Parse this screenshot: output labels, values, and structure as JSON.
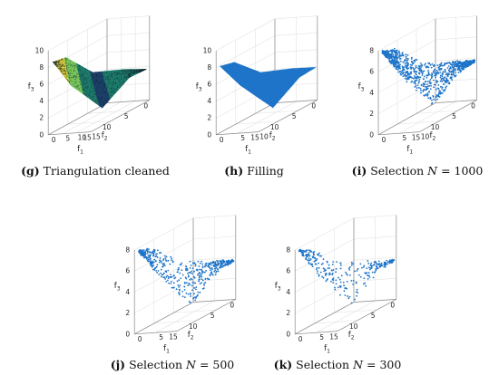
{
  "chart_data": [
    {
      "id": "g",
      "type": "scatter3d",
      "render": "surface",
      "caption_tag": "g",
      "caption": "Triangulation cleaned",
      "caption_var": "",
      "caption_value": "",
      "xlabel": "f",
      "xlabel_sub": "1",
      "ylabel": "f",
      "ylabel_sub": "2",
      "zlabel": "f",
      "zlabel_sub": "3",
      "xticks": [
        "0",
        "5",
        "10",
        "15"
      ],
      "yticks": [
        "0",
        "5",
        "10",
        "15"
      ],
      "zticks": [
        "0",
        "2",
        "4",
        "6",
        "8",
        "10"
      ],
      "xlim": [
        0,
        15
      ],
      "ylim": [
        0,
        15
      ],
      "zlim": [
        0,
        10
      ],
      "colormap": [
        "#3b0f4e",
        "#1b3f66",
        "#1d7a6a",
        "#77c45a",
        "#e7d63a"
      ],
      "front_boundary": [
        [
          1,
          14.5,
          8.5
        ],
        [
          4,
          12,
          5
        ],
        [
          8,
          7,
          1
        ],
        [
          12,
          3,
          3.5
        ],
        [
          14.5,
          0.5,
          3.8
        ]
      ],
      "back_boundary": [
        [
          1,
          14.5,
          8.5
        ],
        [
          2,
          12,
          8.4
        ],
        [
          6,
          8,
          5.5
        ],
        [
          10,
          3,
          4.5
        ],
        [
          14.5,
          0.5,
          3.8
        ]
      ]
    },
    {
      "id": "h",
      "type": "scatter3d",
      "render": "filled",
      "caption_tag": "h",
      "caption": "Filling",
      "caption_var": "",
      "caption_value": "",
      "xlabel": "f",
      "xlabel_sub": "1",
      "ylabel": "f",
      "ylabel_sub": "2",
      "zlabel": "f",
      "zlabel_sub": "3",
      "xticks": [
        "0",
        "5",
        "10"
      ],
      "yticks": [
        "0",
        "5",
        "10",
        "15"
      ],
      "zticks": [
        "0",
        "2",
        "4",
        "6",
        "8",
        "10"
      ],
      "xlim": [
        0,
        10
      ],
      "ylim": [
        0,
        15
      ],
      "zlim": [
        0,
        10
      ],
      "color": "#1e74c8",
      "front_boundary": [
        [
          0.5,
          14.5,
          8
        ],
        [
          3,
          12,
          5
        ],
        [
          6,
          7,
          1
        ],
        [
          8.5,
          3,
          3.5
        ],
        [
          10,
          0.5,
          4
        ]
      ],
      "back_boundary": [
        [
          0.5,
          14.5,
          8
        ],
        [
          1.5,
          12,
          7.8
        ],
        [
          4,
          8,
          5.5
        ],
        [
          7,
          3,
          4.6
        ],
        [
          10,
          0.5,
          4
        ]
      ]
    },
    {
      "id": "i",
      "type": "scatter3d",
      "render": "points",
      "caption_tag": "i",
      "caption": "Selection",
      "caption_var": "N",
      "caption_value": "1000",
      "n_points": 1000,
      "xlabel": "f",
      "xlabel_sub": "1",
      "ylabel": "f",
      "ylabel_sub": "2",
      "zlabel": "f",
      "zlabel_sub": "3",
      "xticks": [
        "0",
        "5",
        "10"
      ],
      "yticks": [
        "0",
        "5",
        "10",
        "15"
      ],
      "zticks": [
        "0",
        "2",
        "4",
        "6",
        "8"
      ],
      "xlim": [
        0,
        10
      ],
      "ylim": [
        0,
        15
      ],
      "zlim": [
        0,
        8
      ],
      "color": "#1e74c8",
      "front_boundary": [
        [
          0.5,
          14.5,
          7.8
        ],
        [
          3,
          12,
          4.8
        ],
        [
          6,
          7,
          1
        ],
        [
          8.5,
          3,
          3.3
        ],
        [
          10,
          0.5,
          3.8
        ]
      ],
      "back_boundary": [
        [
          0.5,
          14.5,
          7.8
        ],
        [
          1.5,
          12,
          7.5
        ],
        [
          4,
          8,
          5.3
        ],
        [
          7,
          3,
          4.3
        ],
        [
          10,
          0.5,
          3.8
        ]
      ]
    },
    {
      "id": "j",
      "type": "scatter3d",
      "render": "points",
      "caption_tag": "j",
      "caption": "Selection",
      "caption_var": "N",
      "caption_value": "500",
      "n_points": 500,
      "xlabel": "f",
      "xlabel_sub": "1",
      "ylabel": "f",
      "ylabel_sub": "2",
      "zlabel": "f",
      "zlabel_sub": "3",
      "xticks": [
        "0",
        "5"
      ],
      "yticks": [
        "0",
        "5",
        "10",
        "15"
      ],
      "zticks": [
        "0",
        "2",
        "4",
        "6",
        "8"
      ],
      "xlim": [
        0,
        10
      ],
      "ylim": [
        0,
        15
      ],
      "zlim": [
        0,
        8
      ],
      "color": "#1e74c8",
      "front_boundary": [
        [
          0.5,
          14.5,
          7.8
        ],
        [
          3,
          12,
          4.8
        ],
        [
          6,
          7,
          1
        ],
        [
          8.5,
          3,
          3.3
        ],
        [
          10,
          0.5,
          3.8
        ]
      ],
      "back_boundary": [
        [
          0.5,
          14.5,
          7.8
        ],
        [
          1.5,
          12,
          7.5
        ],
        [
          4,
          8,
          5.3
        ],
        [
          7,
          3,
          4.3
        ],
        [
          10,
          0.5,
          3.8
        ]
      ]
    },
    {
      "id": "k",
      "type": "scatter3d",
      "render": "points",
      "caption_tag": "k",
      "caption": "Selection",
      "caption_var": "N",
      "caption_value": "300",
      "n_points": 300,
      "xlabel": "f",
      "xlabel_sub": "1",
      "ylabel": "f",
      "ylabel_sub": "2",
      "zlabel": "f",
      "zlabel_sub": "3",
      "xticks": [
        "0",
        "5"
      ],
      "yticks": [
        "0",
        "5",
        "10",
        "15"
      ],
      "zticks": [
        "0",
        "2",
        "4",
        "6",
        "8"
      ],
      "xlim": [
        0,
        10
      ],
      "ylim": [
        0,
        15
      ],
      "zlim": [
        0,
        8
      ],
      "color": "#1e74c8",
      "front_boundary": [
        [
          0.5,
          14.5,
          7.8
        ],
        [
          3,
          12,
          4.8
        ],
        [
          6,
          7,
          1
        ],
        [
          8.5,
          3,
          3.3
        ],
        [
          10,
          0.5,
          3.8
        ]
      ],
      "back_boundary": [
        [
          0.5,
          14.5,
          7.8
        ],
        [
          1.5,
          12,
          7.5
        ],
        [
          4,
          8,
          5.3
        ],
        [
          7,
          3,
          4.3
        ],
        [
          10,
          0.5,
          3.8
        ]
      ]
    }
  ]
}
